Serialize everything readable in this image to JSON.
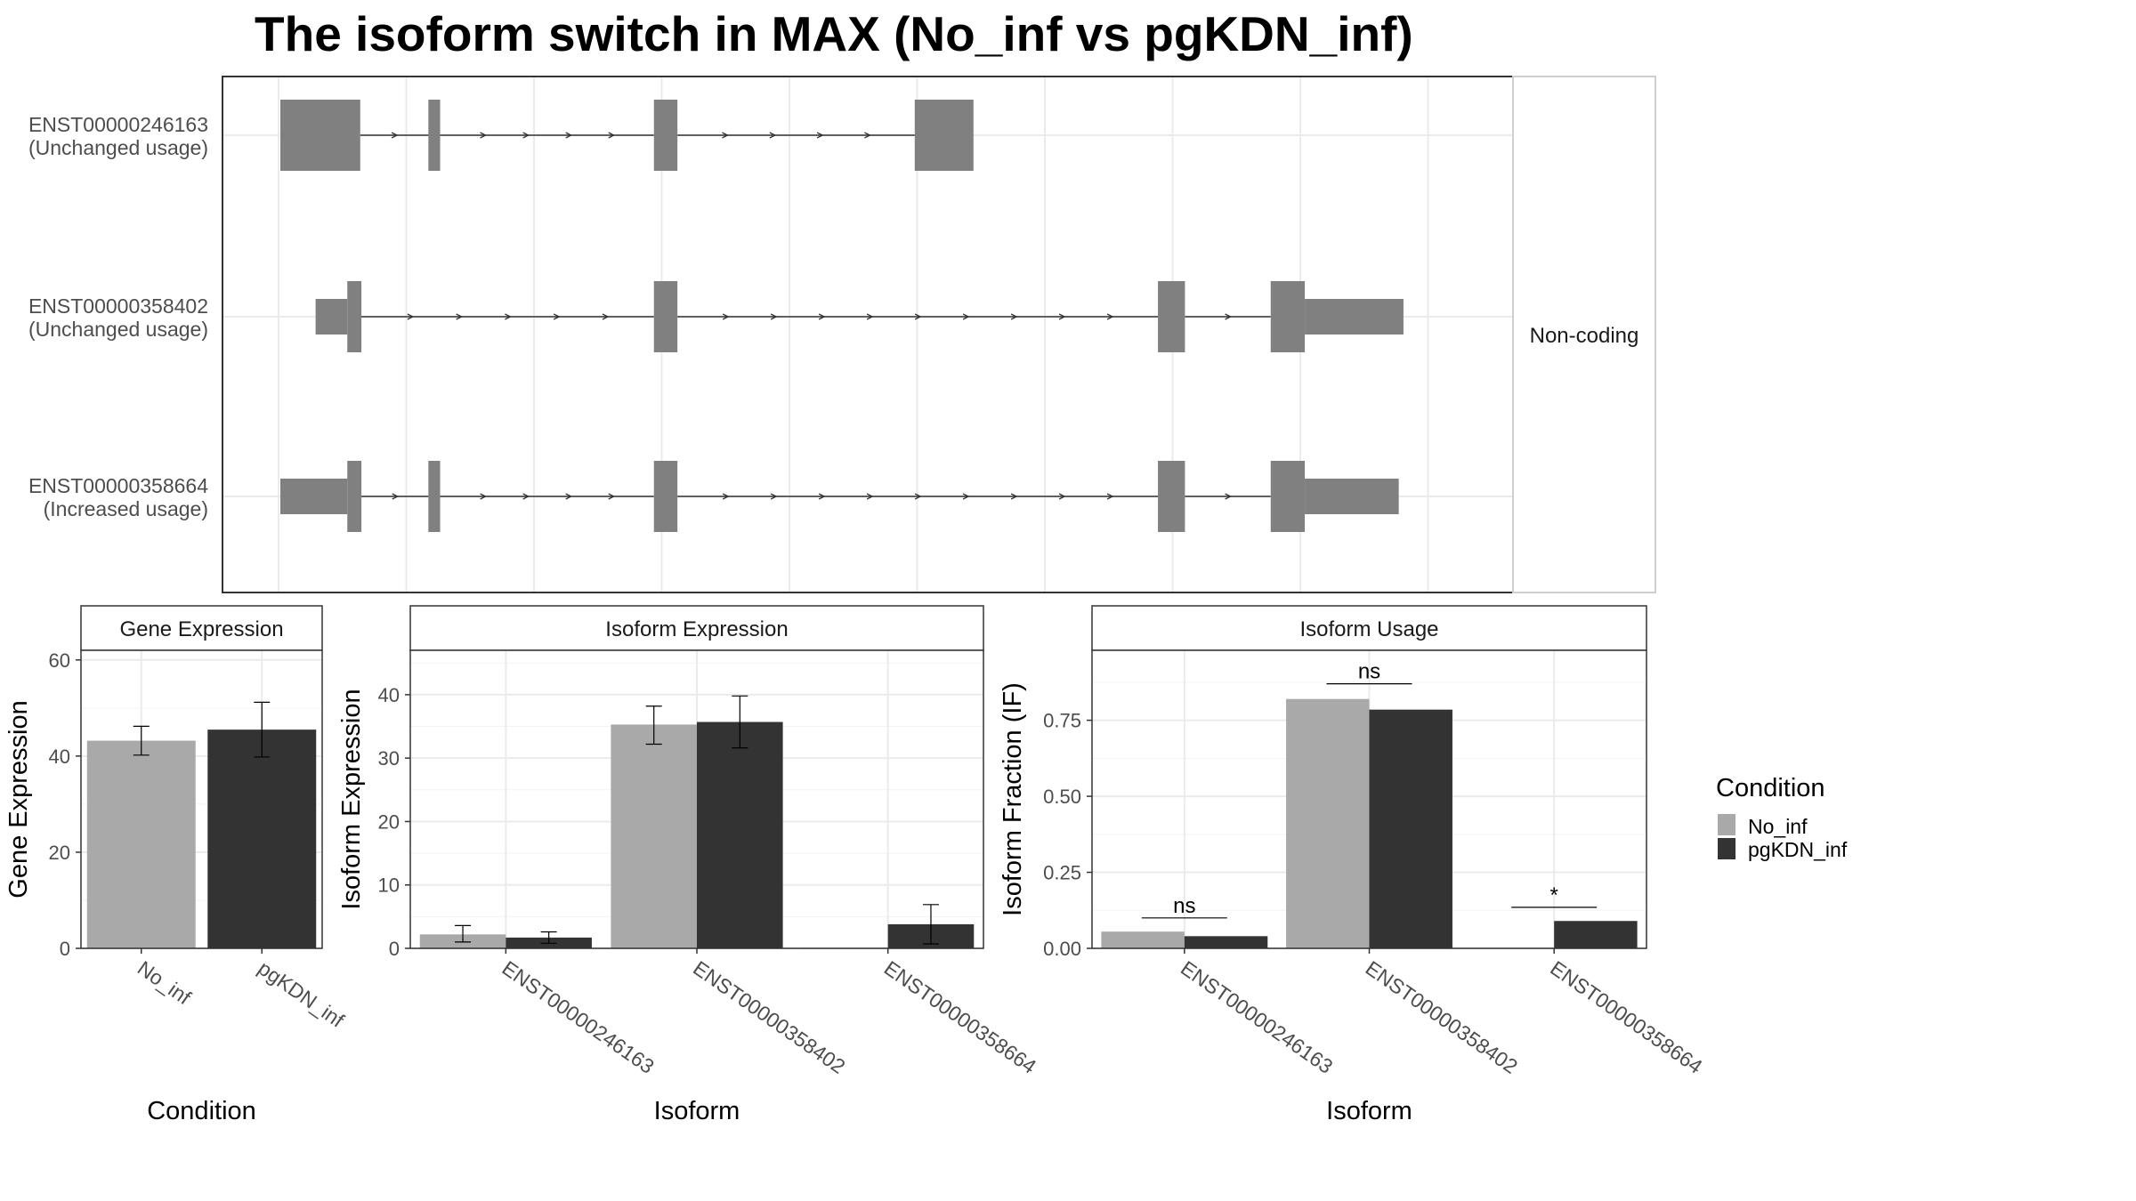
{
  "title": "The isoform switch in MAX (No_inf vs pgKDN_inf)",
  "colors": {
    "no_inf": "#a9a9a9",
    "pgkdn_inf": "#333333",
    "exon": "#808080",
    "grid": "#ebebeb",
    "panel_border": "#333333",
    "strip_bg": "#ffffff"
  },
  "chart_data": [
    {
      "type": "gene-structure",
      "strip_label": "Non-coding",
      "transcripts": [
        {
          "id": "ENST00000246163",
          "usage": "(Unchanged usage)",
          "exons": [
            {
              "start": 0.0,
              "end": 0.068,
              "coding": true
            },
            {
              "start": 0.126,
              "end": 0.136,
              "coding": true
            },
            {
              "start": 0.318,
              "end": 0.338,
              "coding": true
            },
            {
              "start": 0.54,
              "end": 0.59,
              "coding": true
            }
          ]
        },
        {
          "id": "ENST00000358402",
          "usage": "(Unchanged usage)",
          "exons": [
            {
              "start": 0.03,
              "end": 0.057,
              "coding": false
            },
            {
              "start": 0.057,
              "end": 0.069,
              "coding": true
            },
            {
              "start": 0.318,
              "end": 0.338,
              "coding": true
            },
            {
              "start": 0.747,
              "end": 0.77,
              "coding": true
            },
            {
              "start": 0.843,
              "end": 0.872,
              "coding": true
            },
            {
              "start": 0.872,
              "end": 0.956,
              "coding": false
            }
          ]
        },
        {
          "id": "ENST00000358664",
          "usage": "(Increased usage)",
          "exons": [
            {
              "start": 0.0,
              "end": 0.057,
              "coding": false
            },
            {
              "start": 0.057,
              "end": 0.069,
              "coding": true
            },
            {
              "start": 0.126,
              "end": 0.136,
              "coding": true
            },
            {
              "start": 0.318,
              "end": 0.338,
              "coding": true
            },
            {
              "start": 0.747,
              "end": 0.77,
              "coding": true
            },
            {
              "start": 0.843,
              "end": 0.872,
              "coding": true
            },
            {
              "start": 0.872,
              "end": 0.952,
              "coding": false
            }
          ]
        }
      ]
    },
    {
      "type": "bar",
      "title": "Gene Expression",
      "xlabel": "Condition",
      "ylabel": "Gene Expression",
      "categories": [
        "No_inf",
        "pgKDN_inf"
      ],
      "values": [
        43.2,
        45.5
      ],
      "errors": [
        [
          40.2,
          46.2
        ],
        [
          39.8,
          51.2
        ]
      ],
      "ylim": [
        0,
        62
      ],
      "yticks": [
        0,
        20,
        40,
        60
      ],
      "ytick_labels": [
        "0",
        "20",
        "40",
        "60"
      ]
    },
    {
      "type": "bar",
      "title": "Isoform Expression",
      "xlabel": "Isoform",
      "ylabel": "Isoform Expression",
      "categories": [
        "ENST00000246163",
        "ENST00000358402",
        "ENST00000358664"
      ],
      "ylim": [
        0,
        47
      ],
      "yticks": [
        0,
        10,
        20,
        30,
        40
      ],
      "ytick_labels": [
        "0",
        "10",
        "20",
        "30",
        "40"
      ],
      "series": [
        {
          "name": "No_inf",
          "values": [
            2.2,
            35.3,
            0.1
          ],
          "errors": [
            [
              1.0,
              3.6
            ],
            [
              32.2,
              38.2
            ],
            null
          ]
        },
        {
          "name": "pgKDN_inf",
          "values": [
            1.7,
            35.7,
            3.8
          ],
          "errors": [
            [
              0.8,
              2.6
            ],
            [
              31.6,
              39.8
            ],
            [
              0.7,
              6.9
            ]
          ]
        }
      ]
    },
    {
      "type": "bar",
      "title": "Isoform Usage",
      "xlabel": "Isoform",
      "ylabel": "Isoform Fraction (IF)",
      "categories": [
        "ENST00000246163",
        "ENST00000358402",
        "ENST00000358664"
      ],
      "ylim": [
        0,
        0.98
      ],
      "yticks": [
        0,
        0.25,
        0.5,
        0.75
      ],
      "ytick_labels": [
        "0.00",
        "0.25",
        "0.50",
        "0.75"
      ],
      "series": [
        {
          "name": "No_inf",
          "values": [
            0.055,
            0.82,
            0.0
          ]
        },
        {
          "name": "pgKDN_inf",
          "values": [
            0.04,
            0.785,
            0.09
          ]
        }
      ],
      "significance": [
        "ns",
        "ns",
        "*"
      ],
      "sig_levels": [
        0.1,
        0.87,
        0.135
      ]
    }
  ],
  "legend": {
    "title": "Condition",
    "placement": "right",
    "items": [
      "No_inf",
      "pgKDN_inf"
    ]
  }
}
